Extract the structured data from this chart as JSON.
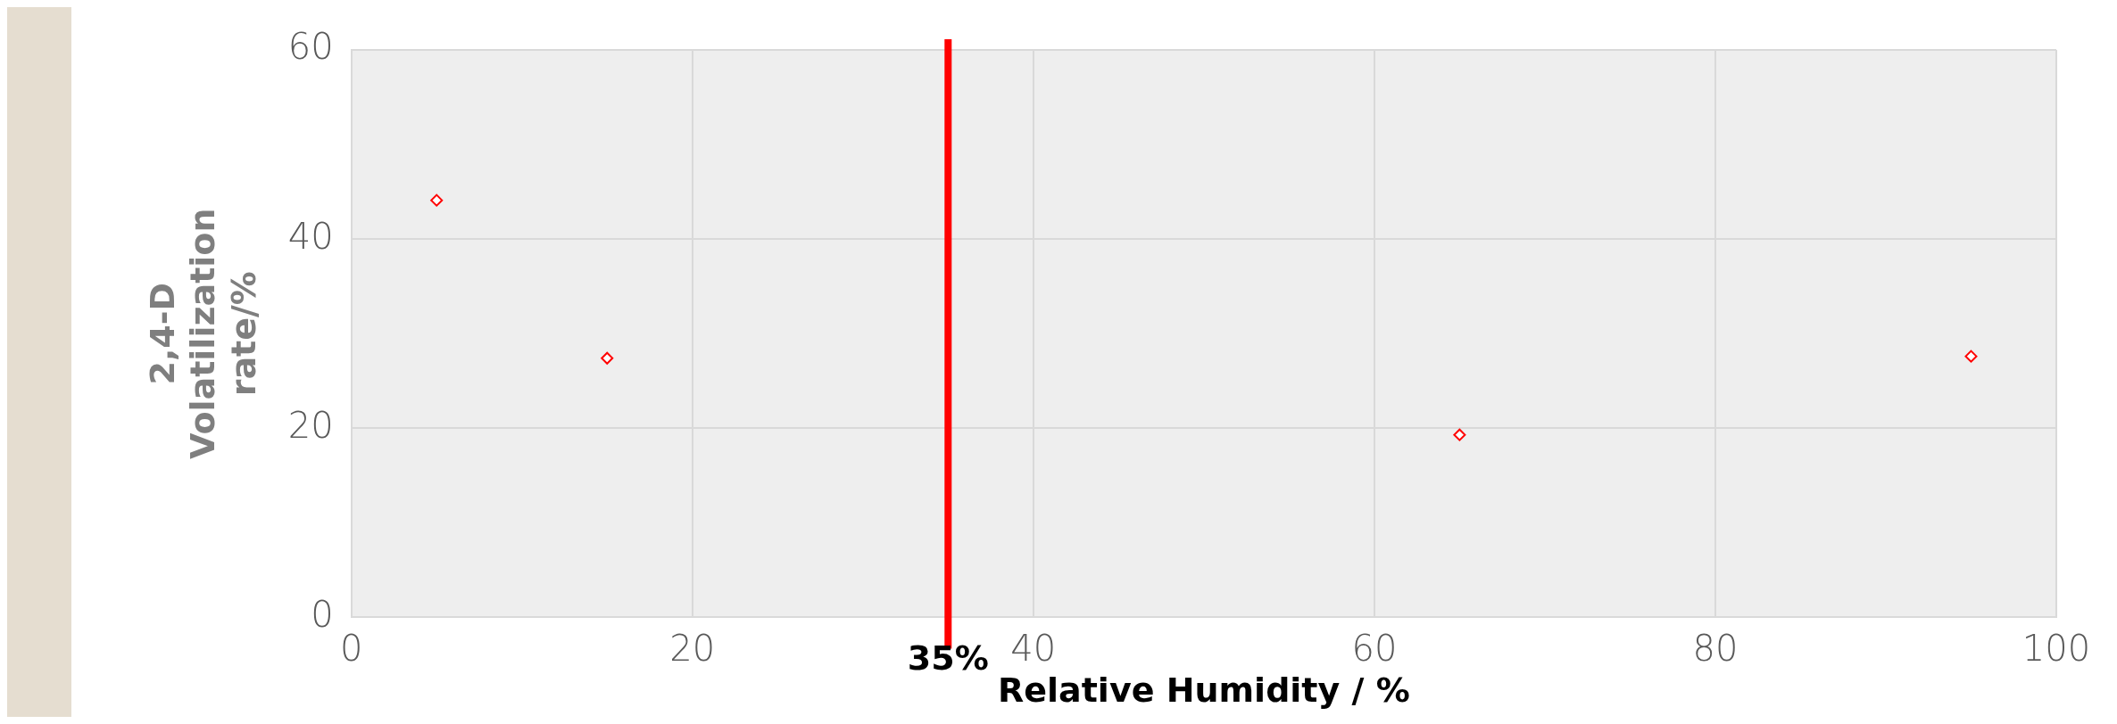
{
  "chart_data": {
    "type": "scatter",
    "xlabel": "Relative Humidity / %",
    "ylabel": "2,4-D Volatilization rate/%",
    "x": [
      5,
      15,
      65,
      95
    ],
    "series": [
      {
        "color": "#ff0000",
        "values": [
          44.1,
          27.4,
          19.3,
          27.6
        ]
      }
    ],
    "xlim": [
      0,
      100
    ],
    "xticks": [
      0,
      20,
      40,
      60,
      80,
      100
    ],
    "ylim": [
      0,
      60
    ],
    "yticks": [
      0,
      20,
      40,
      60
    ],
    "ref_lines": [
      {
        "axis": "x",
        "value": 35,
        "label": "35%",
        "color": "#ff0000"
      }
    ],
    "grid": true,
    "marker": "diamond",
    "legend": false
  }
}
